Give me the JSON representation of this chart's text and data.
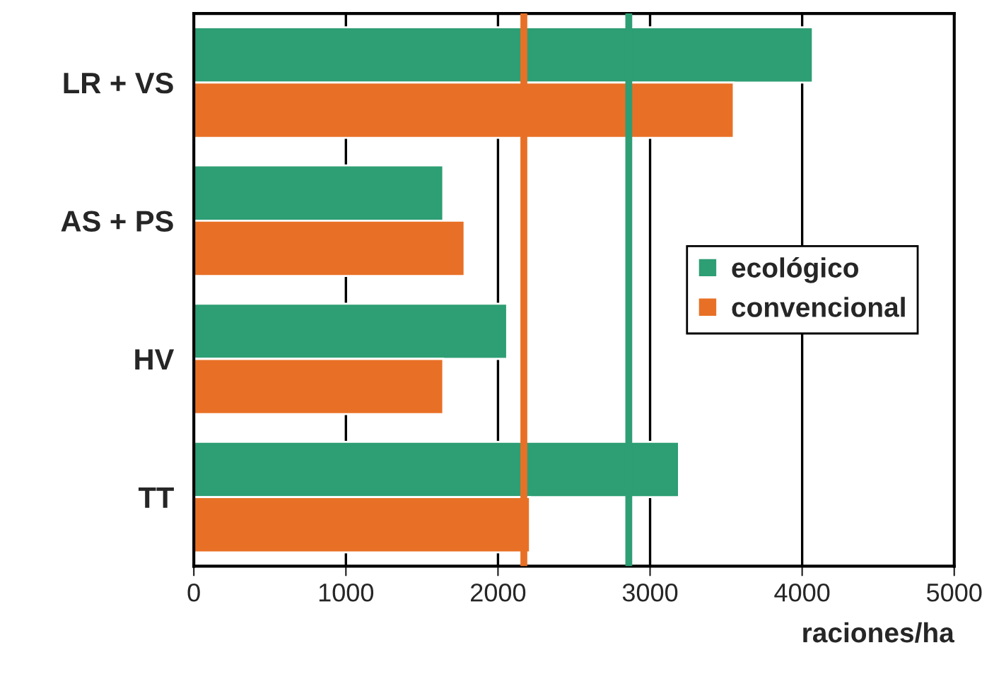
{
  "chart_data": {
    "type": "bar",
    "orientation": "horizontal",
    "categories": [
      "LR + VS",
      "AS + PS",
      "HV",
      "TT"
    ],
    "series": [
      {
        "name": "ecológico",
        "color": "#2e9e74",
        "values": [
          4070,
          1640,
          2060,
          3190
        ]
      },
      {
        "name": "convencional",
        "color": "#e87026",
        "values": [
          3550,
          1780,
          1640,
          2210
        ]
      }
    ],
    "xlabel": "raciones/ha",
    "xlim": [
      0,
      5000
    ],
    "xticks": [
      0,
      1000,
      2000,
      3000,
      4000,
      5000
    ],
    "grid": "x",
    "legend": "right",
    "ref_lines": [
      {
        "axis": "x",
        "value": 2170,
        "color": "#e87026"
      },
      {
        "axis": "x",
        "value": 2860,
        "color": "#2e9e74"
      }
    ]
  }
}
